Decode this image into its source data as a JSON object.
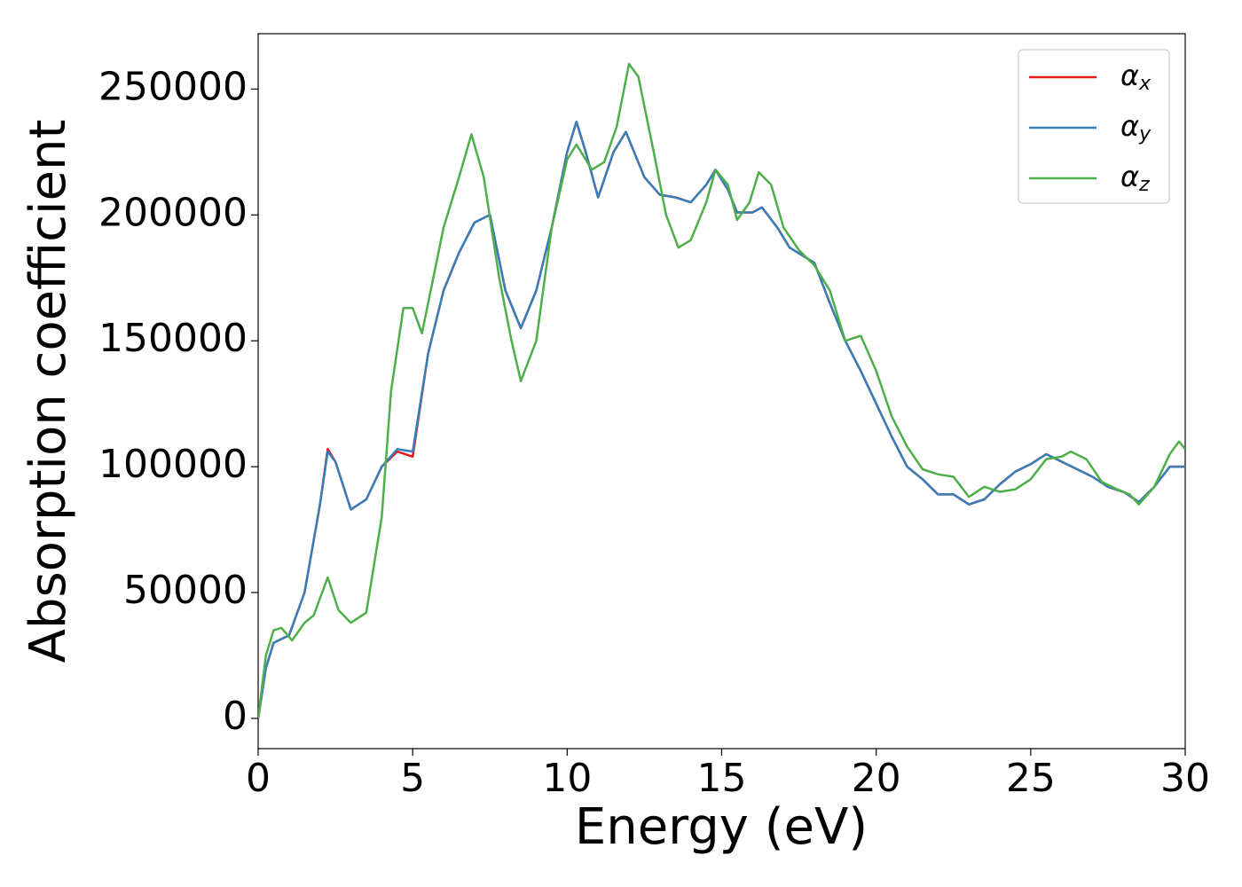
{
  "chart_data": {
    "type": "line",
    "xlabel": "Energy (eV)",
    "ylabel": "Absorption coefficient",
    "xlim": [
      0,
      30
    ],
    "xticks": [
      0,
      5,
      10,
      15,
      20,
      25,
      30
    ],
    "ylim": [
      -12000,
      272000
    ],
    "yticks": [
      0,
      50000,
      100000,
      150000,
      200000,
      250000
    ],
    "legend": "upper right",
    "grid": false,
    "series": [
      {
        "name": "αx",
        "color": "#e41a1c",
        "x": [
          0,
          0.25,
          0.5,
          1.0,
          1.5,
          2.0,
          2.25,
          2.5,
          3.0,
          3.5,
          4.0,
          4.5,
          5.0,
          5.5,
          6.0,
          6.5,
          7.0,
          7.5,
          8.0,
          8.5,
          9.0,
          9.5,
          10.0,
          10.3,
          10.6,
          11.0,
          11.5,
          11.9,
          12.5,
          13.0,
          13.5,
          14.0,
          14.5,
          14.8,
          15.2,
          15.5,
          16.0,
          16.3,
          16.8,
          17.2,
          18.0,
          18.5,
          19.0,
          19.5,
          20.0,
          20.5,
          21.0,
          21.5,
          22.0,
          22.5,
          23.0,
          23.5,
          24.0,
          24.5,
          25.0,
          25.5,
          26.0,
          26.5,
          27.0,
          27.5,
          28.0,
          28.5,
          29.0,
          29.5,
          30.0
        ],
        "values": [
          0,
          20000,
          30000,
          33000,
          50000,
          85000,
          107000,
          102000,
          83000,
          87000,
          100000,
          106000,
          104000,
          145000,
          170000,
          185000,
          197000,
          200000,
          170000,
          155000,
          170000,
          195000,
          225000,
          237000,
          225000,
          207000,
          225000,
          233000,
          215000,
          208000,
          207000,
          205000,
          212000,
          218000,
          210000,
          201000,
          201000,
          203000,
          195000,
          187000,
          181000,
          165000,
          150000,
          138000,
          125000,
          112000,
          100000,
          95000,
          89000,
          89000,
          85000,
          87000,
          93000,
          98000,
          101000,
          105000,
          102000,
          99000,
          96000,
          92000,
          90000,
          86000,
          92000,
          100000,
          100000
        ]
      },
      {
        "name": "αy",
        "color": "#377eb8",
        "x": [
          0,
          0.25,
          0.5,
          1.0,
          1.5,
          2.0,
          2.25,
          2.5,
          3.0,
          3.5,
          4.0,
          4.5,
          5.0,
          5.5,
          6.0,
          6.5,
          7.0,
          7.5,
          8.0,
          8.5,
          9.0,
          9.5,
          10.0,
          10.3,
          10.6,
          11.0,
          11.5,
          11.9,
          12.5,
          13.0,
          13.5,
          14.0,
          14.5,
          14.8,
          15.2,
          15.5,
          16.0,
          16.3,
          16.8,
          17.2,
          18.0,
          18.5,
          19.0,
          19.5,
          20.0,
          20.5,
          21.0,
          21.5,
          22.0,
          22.5,
          23.0,
          23.5,
          24.0,
          24.5,
          25.0,
          25.5,
          26.0,
          26.5,
          27.0,
          27.5,
          28.0,
          28.5,
          29.0,
          29.5,
          30.0
        ],
        "values": [
          0,
          20000,
          30000,
          33000,
          50000,
          85000,
          106000,
          102000,
          83000,
          87000,
          100000,
          107000,
          106000,
          145000,
          170000,
          185000,
          197000,
          200000,
          170000,
          155000,
          170000,
          195000,
          225000,
          237000,
          225000,
          207000,
          225000,
          233000,
          215000,
          208000,
          207000,
          205000,
          212000,
          218000,
          210000,
          201000,
          201000,
          203000,
          195000,
          187000,
          181000,
          165000,
          150000,
          138000,
          125000,
          112000,
          100000,
          95000,
          89000,
          89000,
          85000,
          87000,
          93000,
          98000,
          101000,
          105000,
          102000,
          99000,
          96000,
          92000,
          90000,
          86000,
          92000,
          100000,
          100000
        ]
      },
      {
        "name": "αz",
        "color": "#4daf4a",
        "x": [
          0,
          0.25,
          0.5,
          0.75,
          1.1,
          1.5,
          1.8,
          2.25,
          2.6,
          3.0,
          3.5,
          4.0,
          4.3,
          4.7,
          5.0,
          5.3,
          5.5,
          6.0,
          6.5,
          6.9,
          7.3,
          7.8,
          8.2,
          8.5,
          9.0,
          9.5,
          10.0,
          10.3,
          10.8,
          11.2,
          11.6,
          12.0,
          12.3,
          12.8,
          13.2,
          13.6,
          14.0,
          14.5,
          14.8,
          15.2,
          15.5,
          15.9,
          16.2,
          16.6,
          17.0,
          17.5,
          18.0,
          18.5,
          19.0,
          19.5,
          20.0,
          20.5,
          21.0,
          21.5,
          22.0,
          22.5,
          23.0,
          23.5,
          24.0,
          24.5,
          25.0,
          25.5,
          26.0,
          26.3,
          26.8,
          27.3,
          27.8,
          28.2,
          28.5,
          29.0,
          29.5,
          29.8,
          30.0
        ],
        "values": [
          0,
          25000,
          35000,
          36000,
          31000,
          38000,
          41000,
          56000,
          43000,
          38000,
          42000,
          80000,
          130000,
          163000,
          163000,
          153000,
          165000,
          195000,
          215000,
          232000,
          215000,
          175000,
          150000,
          134000,
          150000,
          195000,
          222000,
          228000,
          218000,
          221000,
          235000,
          260000,
          255000,
          225000,
          200000,
          187000,
          190000,
          205000,
          218000,
          212000,
          198000,
          205000,
          217000,
          212000,
          195000,
          186000,
          180000,
          170000,
          150000,
          152000,
          138000,
          120000,
          108000,
          99000,
          97000,
          96000,
          88000,
          92000,
          90000,
          91000,
          95000,
          103000,
          104000,
          106000,
          103000,
          94000,
          91000,
          89000,
          85000,
          92000,
          105000,
          110000,
          107000
        ]
      }
    ]
  }
}
